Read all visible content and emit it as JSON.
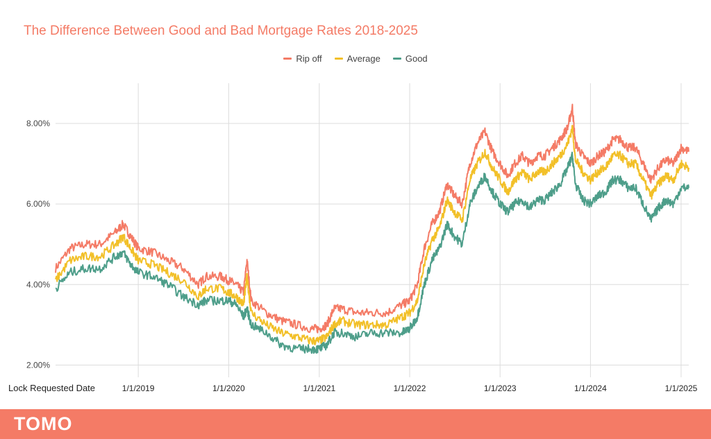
{
  "chart_data": {
    "type": "line",
    "title": "The Difference Between Good and Bad Mortgage Rates 2018-2025",
    "xlabel": "Lock Requested Date",
    "ylabel": "",
    "x_ticks": [
      "1/1/2019",
      "1/1/2020",
      "1/1/2021",
      "1/1/2022",
      "1/1/2023",
      "1/1/2024",
      "1/1/2025"
    ],
    "y_ticks": [
      "2.00%",
      "4.00%",
      "6.00%",
      "8.00%"
    ],
    "ylim": [
      1.8,
      9.0
    ],
    "xlim": [
      "2018-02-01",
      "2025-02-01"
    ],
    "grid": true,
    "legend_position": "top-center",
    "series": [
      {
        "name": "Rip off",
        "color": "#f47b66",
        "x": [
          "2018-02-01",
          "2018-04-01",
          "2018-06-01",
          "2018-08-01",
          "2018-10-01",
          "2018-11-01",
          "2018-12-01",
          "2019-01-01",
          "2019-03-01",
          "2019-05-01",
          "2019-07-01",
          "2019-09-01",
          "2019-10-01",
          "2019-12-01",
          "2020-01-01",
          "2020-02-01",
          "2020-03-01",
          "2020-03-15",
          "2020-04-01",
          "2020-06-01",
          "2020-08-01",
          "2020-10-01",
          "2020-12-01",
          "2021-01-01",
          "2021-02-01",
          "2021-03-01",
          "2021-04-01",
          "2021-06-01",
          "2021-08-01",
          "2021-10-01",
          "2021-12-01",
          "2022-01-01",
          "2022-02-01",
          "2022-03-01",
          "2022-04-01",
          "2022-05-01",
          "2022-06-01",
          "2022-07-01",
          "2022-08-01",
          "2022-09-01",
          "2022-10-01",
          "2022-11-01",
          "2022-12-01",
          "2023-01-01",
          "2023-02-01",
          "2023-03-01",
          "2023-04-01",
          "2023-05-01",
          "2023-06-01",
          "2023-07-01",
          "2023-08-01",
          "2023-09-01",
          "2023-10-01",
          "2023-10-20",
          "2023-11-01",
          "2023-12-01",
          "2024-01-01",
          "2024-02-01",
          "2024-03-01",
          "2024-04-01",
          "2024-05-01",
          "2024-06-01",
          "2024-07-01",
          "2024-08-01",
          "2024-09-01",
          "2024-10-01",
          "2024-11-01",
          "2024-12-01",
          "2025-01-01",
          "2025-02-01"
        ],
        "values": [
          4.4,
          4.9,
          5.0,
          5.0,
          5.3,
          5.5,
          5.2,
          4.9,
          4.8,
          4.6,
          4.4,
          4.0,
          4.2,
          4.2,
          4.1,
          4.0,
          3.8,
          4.6,
          3.6,
          3.3,
          3.1,
          3.0,
          2.9,
          2.9,
          3.0,
          3.4,
          3.4,
          3.3,
          3.3,
          3.3,
          3.5,
          3.6,
          4.0,
          4.9,
          5.5,
          5.8,
          6.5,
          6.2,
          6.0,
          7.0,
          7.5,
          7.8,
          7.3,
          7.0,
          6.7,
          7.0,
          7.2,
          7.0,
          7.2,
          7.2,
          7.4,
          7.6,
          7.9,
          8.4,
          7.5,
          7.2,
          7.0,
          7.2,
          7.3,
          7.6,
          7.6,
          7.4,
          7.4,
          7.0,
          6.6,
          6.9,
          7.1,
          7.0,
          7.4,
          7.3
        ]
      },
      {
        "name": "Average",
        "color": "#f2c029",
        "x": [
          "2018-02-01",
          "2018-04-01",
          "2018-06-01",
          "2018-08-01",
          "2018-10-01",
          "2018-11-01",
          "2018-12-01",
          "2019-01-01",
          "2019-03-01",
          "2019-05-01",
          "2019-07-01",
          "2019-09-01",
          "2019-10-01",
          "2019-12-01",
          "2020-01-01",
          "2020-02-01",
          "2020-03-01",
          "2020-03-15",
          "2020-04-01",
          "2020-06-01",
          "2020-08-01",
          "2020-10-01",
          "2020-12-01",
          "2021-01-01",
          "2021-02-01",
          "2021-03-01",
          "2021-04-01",
          "2021-06-01",
          "2021-08-01",
          "2021-10-01",
          "2021-12-01",
          "2022-01-01",
          "2022-02-01",
          "2022-03-01",
          "2022-04-01",
          "2022-05-01",
          "2022-06-01",
          "2022-07-01",
          "2022-08-01",
          "2022-09-01",
          "2022-10-01",
          "2022-11-01",
          "2022-12-01",
          "2023-01-01",
          "2023-02-01",
          "2023-03-01",
          "2023-04-01",
          "2023-05-01",
          "2023-06-01",
          "2023-07-01",
          "2023-08-01",
          "2023-09-01",
          "2023-10-01",
          "2023-10-20",
          "2023-11-01",
          "2023-12-01",
          "2024-01-01",
          "2024-02-01",
          "2024-03-01",
          "2024-04-01",
          "2024-05-01",
          "2024-06-01",
          "2024-07-01",
          "2024-08-01",
          "2024-09-01",
          "2024-10-01",
          "2024-11-01",
          "2024-12-01",
          "2025-01-01",
          "2025-02-01"
        ],
        "values": [
          4.1,
          4.6,
          4.7,
          4.7,
          5.0,
          5.2,
          4.9,
          4.6,
          4.5,
          4.3,
          4.1,
          3.7,
          3.9,
          3.9,
          3.8,
          3.7,
          3.5,
          4.2,
          3.3,
          3.0,
          2.8,
          2.7,
          2.6,
          2.6,
          2.7,
          3.0,
          3.1,
          3.0,
          3.0,
          3.0,
          3.2,
          3.3,
          3.6,
          4.5,
          5.1,
          5.4,
          6.1,
          5.8,
          5.6,
          6.6,
          7.0,
          7.3,
          6.9,
          6.6,
          6.3,
          6.6,
          6.8,
          6.6,
          6.8,
          6.8,
          7.0,
          7.2,
          7.5,
          7.9,
          7.1,
          6.8,
          6.6,
          6.8,
          6.9,
          7.2,
          7.2,
          7.0,
          7.0,
          6.6,
          6.2,
          6.5,
          6.7,
          6.6,
          7.0,
          6.9
        ]
      },
      {
        "name": "Good",
        "color": "#4e9e8a",
        "x": [
          "2018-02-01",
          "2018-04-01",
          "2018-06-01",
          "2018-08-01",
          "2018-10-01",
          "2018-11-01",
          "2018-12-01",
          "2019-01-01",
          "2019-03-01",
          "2019-05-01",
          "2019-07-01",
          "2019-09-01",
          "2019-10-01",
          "2019-12-01",
          "2020-01-01",
          "2020-02-01",
          "2020-03-01",
          "2020-03-15",
          "2020-04-01",
          "2020-06-01",
          "2020-08-01",
          "2020-10-01",
          "2020-12-01",
          "2021-01-01",
          "2021-02-01",
          "2021-03-01",
          "2021-04-01",
          "2021-06-01",
          "2021-08-01",
          "2021-10-01",
          "2021-12-01",
          "2022-01-01",
          "2022-02-01",
          "2022-03-01",
          "2022-04-01",
          "2022-05-01",
          "2022-06-01",
          "2022-07-01",
          "2022-08-01",
          "2022-09-01",
          "2022-10-01",
          "2022-11-01",
          "2022-12-01",
          "2023-01-01",
          "2023-02-01",
          "2023-03-01",
          "2023-04-01",
          "2023-05-01",
          "2023-06-01",
          "2023-07-01",
          "2023-08-01",
          "2023-09-01",
          "2023-10-01",
          "2023-10-20",
          "2023-11-01",
          "2023-12-01",
          "2024-01-01",
          "2024-02-01",
          "2024-03-01",
          "2024-04-01",
          "2024-05-01",
          "2024-06-01",
          "2024-07-01",
          "2024-08-01",
          "2024-09-01",
          "2024-10-01",
          "2024-11-01",
          "2024-12-01",
          "2025-01-01",
          "2025-02-01"
        ],
        "values": [
          3.9,
          4.3,
          4.4,
          4.4,
          4.7,
          4.8,
          4.5,
          4.3,
          4.2,
          4.0,
          3.7,
          3.5,
          3.6,
          3.6,
          3.6,
          3.5,
          3.2,
          3.4,
          3.0,
          2.8,
          2.5,
          2.4,
          2.4,
          2.4,
          2.5,
          2.8,
          2.8,
          2.7,
          2.8,
          2.8,
          2.8,
          2.9,
          3.2,
          4.0,
          4.6,
          4.9,
          5.5,
          5.2,
          5.0,
          6.0,
          6.4,
          6.7,
          6.3,
          6.0,
          5.8,
          6.0,
          6.1,
          5.9,
          6.1,
          6.1,
          6.3,
          6.5,
          6.9,
          7.2,
          6.5,
          6.1,
          6.0,
          6.2,
          6.3,
          6.6,
          6.6,
          6.4,
          6.4,
          6.0,
          5.6,
          5.9,
          6.1,
          6.0,
          6.4,
          6.4
        ]
      }
    ]
  },
  "footer": {
    "logo_text": "TOMO",
    "color": "#f47b66"
  }
}
